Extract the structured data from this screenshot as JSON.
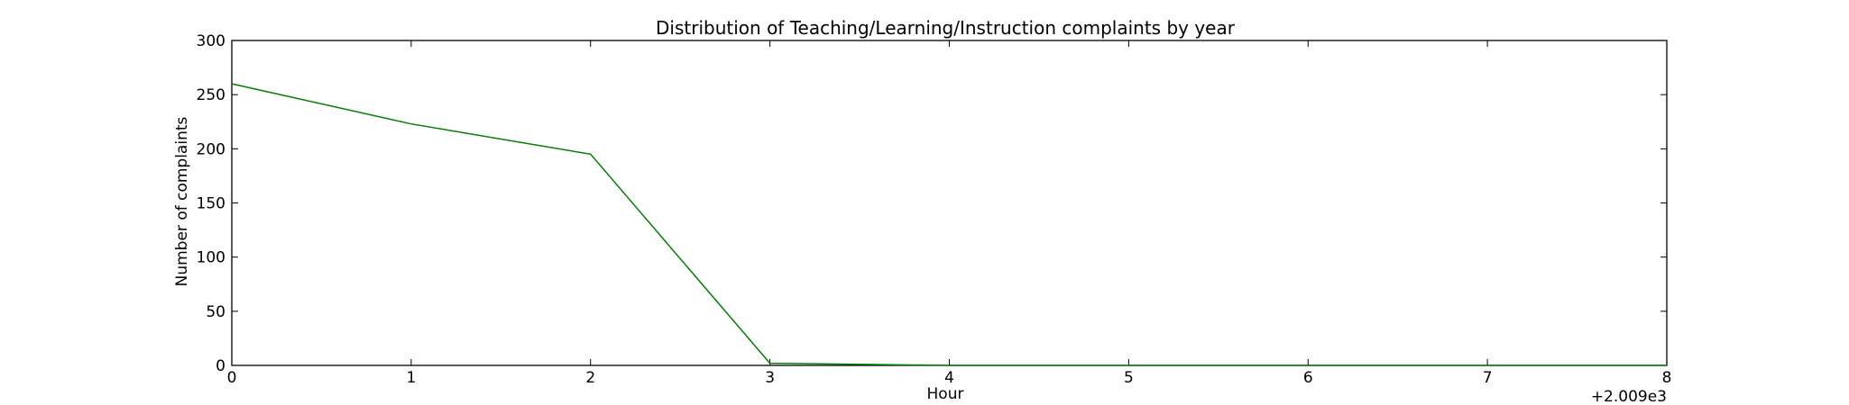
{
  "chart_data": {
    "type": "line",
    "title": "Distribution of  Teaching/Learning/Instruction complaints by year",
    "xlabel": "Hour",
    "ylabel": "Number of complaints",
    "x_offset_label": "+2.009e3",
    "xlim": [
      0,
      8
    ],
    "ylim": [
      0,
      300
    ],
    "xticks": [
      0,
      1,
      2,
      3,
      4,
      5,
      6,
      7,
      8
    ],
    "yticks": [
      0,
      50,
      100,
      150,
      200,
      250,
      300
    ],
    "grid": false,
    "series": [
      {
        "color": "#008000",
        "x": [
          0,
          1,
          2,
          3,
          4,
          5,
          6,
          7,
          8
        ],
        "y": [
          260,
          223,
          195,
          2,
          0,
          0,
          0,
          0,
          0
        ]
      }
    ]
  }
}
